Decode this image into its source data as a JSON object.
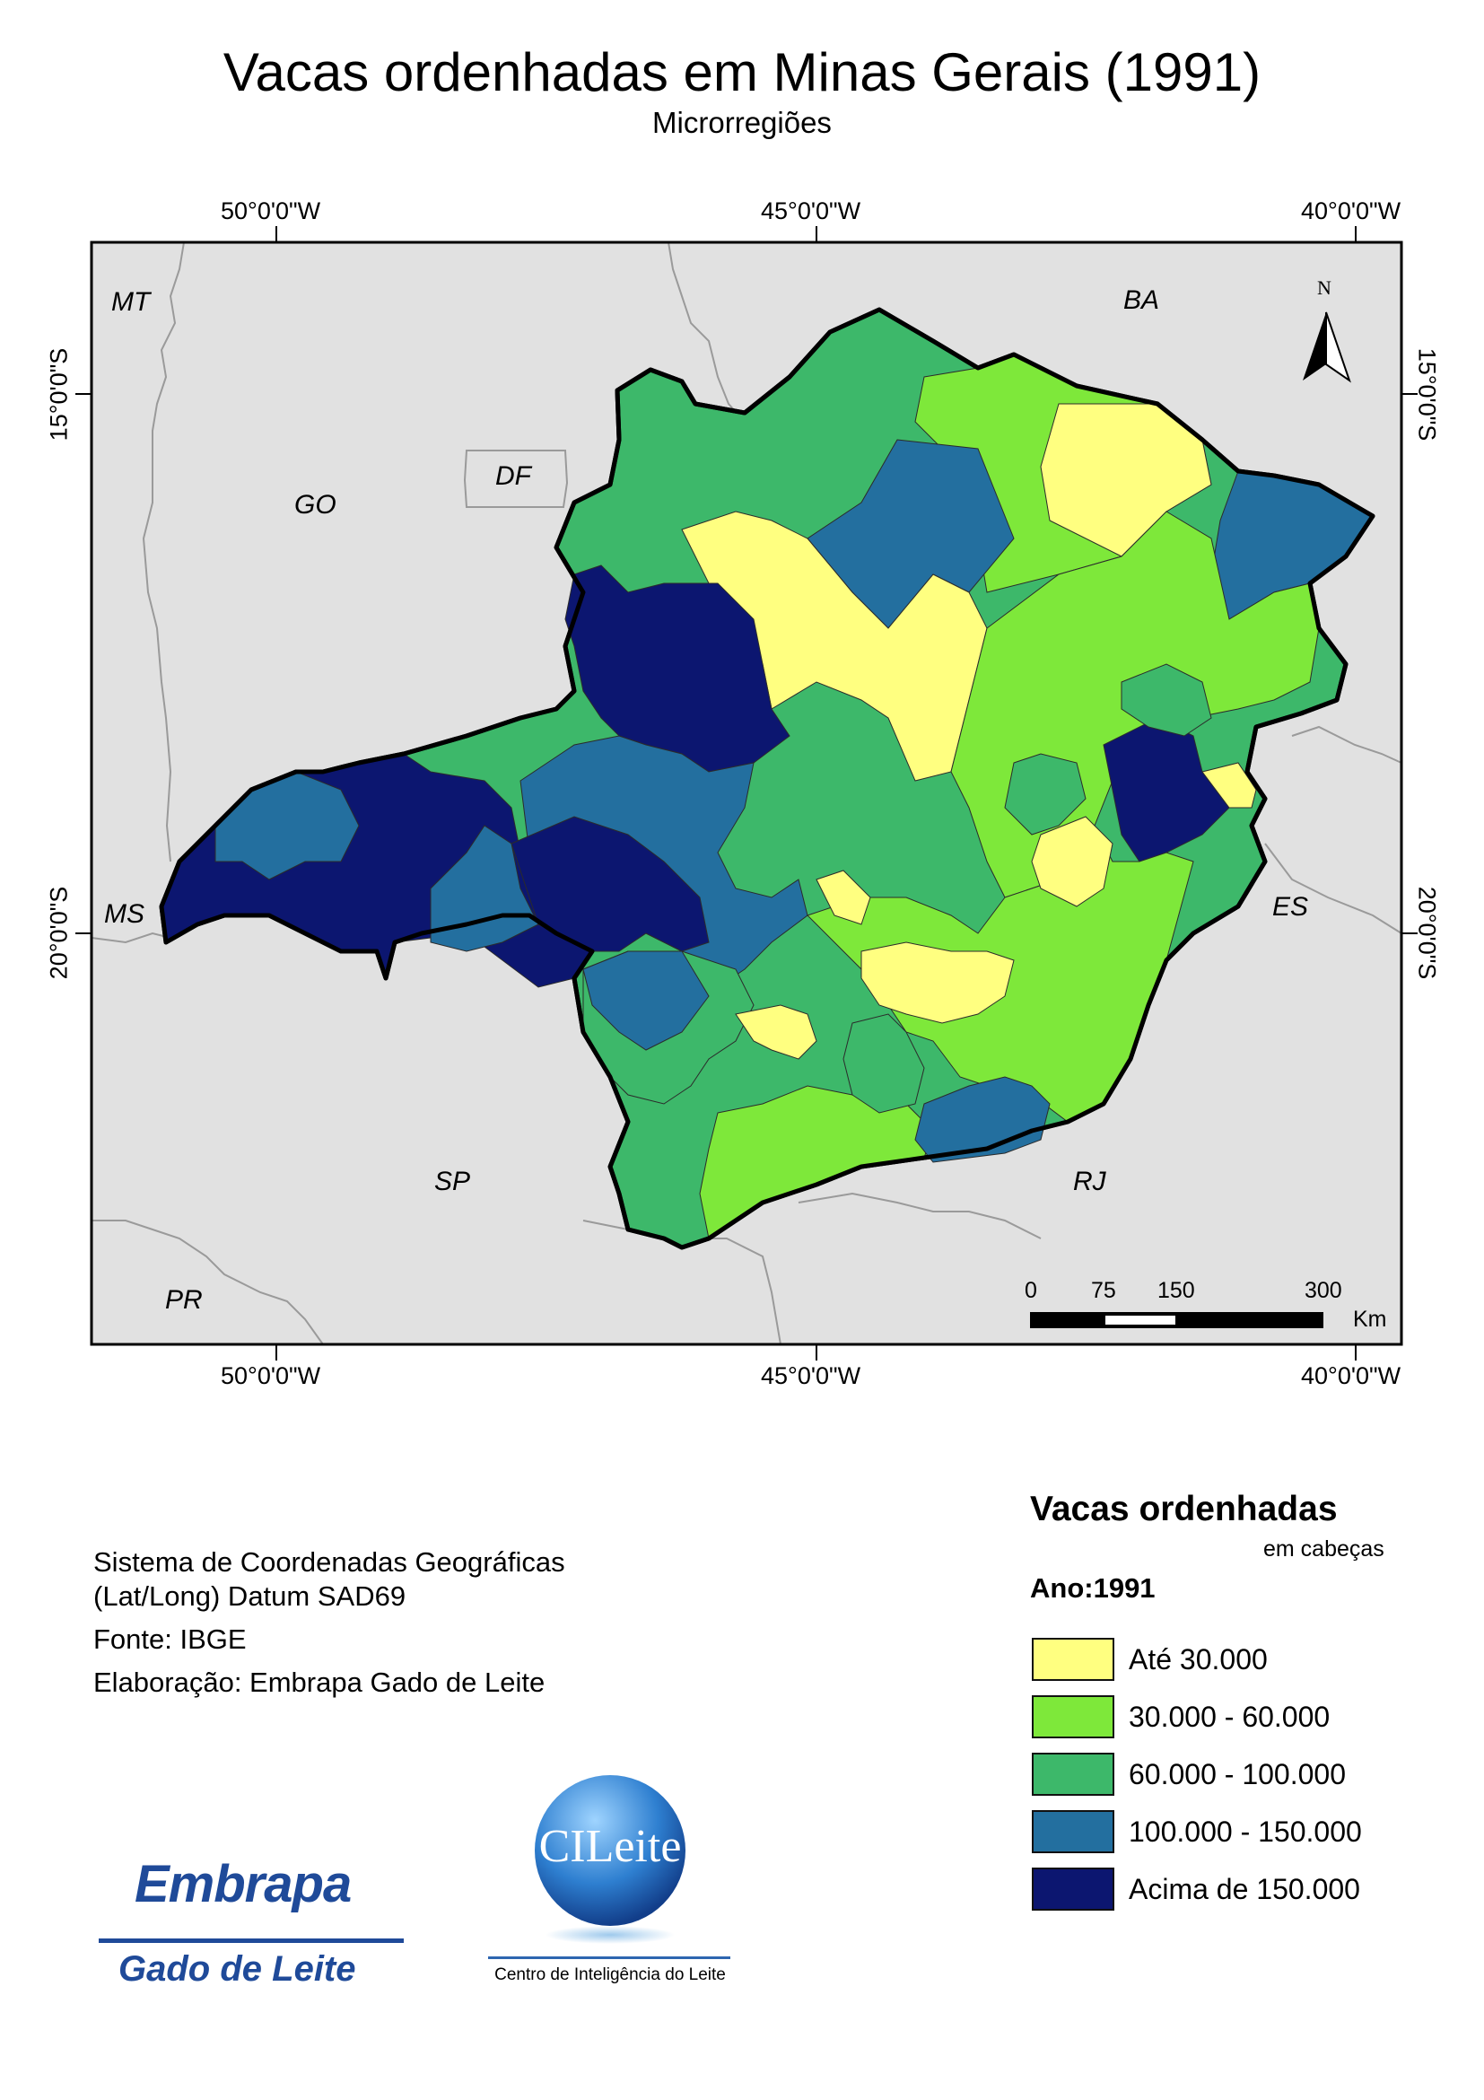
{
  "header": {
    "title": "Vacas ordenhadas em Minas Gerais (1991)",
    "subtitle": "Microrregiões"
  },
  "map": {
    "coords": {
      "lon": [
        "50°0'0\"W",
        "45°0'0\"W",
        "40°0'0\"W"
      ],
      "lat": [
        "15°0'0\"S",
        "20°0'0\"S"
      ]
    },
    "states": [
      "MT",
      "BA",
      "GO",
      "DF",
      "MS",
      "ES",
      "SP",
      "RJ",
      "PR"
    ],
    "north_label": "N",
    "scale": {
      "ticks": [
        "0",
        "75",
        "150",
        "300"
      ],
      "unit": "Km"
    },
    "background_color": "#e1e1e1"
  },
  "info": {
    "coord_system_line1": "Sistema de Coordenadas Geográficas",
    "coord_system_line2": "(Lat/Long) Datum SAD69",
    "source": "Fonte: IBGE",
    "authorship": "Elaboração: Embrapa Gado de Leite"
  },
  "legend": {
    "title": "Vacas ordenhadas",
    "subtitle": "em cabeças",
    "year": "Ano:1991",
    "classes": [
      {
        "label": "Até 30.000",
        "color": "#ffff80"
      },
      {
        "label": "30.000 - 60.000",
        "color": "#7ee83a"
      },
      {
        "label": "60.000 - 100.000",
        "color": "#3db86a"
      },
      {
        "label": "100.000 - 150.000",
        "color": "#236f9f"
      },
      {
        "label": "Acima de 150.000",
        "color": "#0c1670"
      }
    ]
  },
  "logos": {
    "embrapa_name": "Embrapa",
    "embrapa_sub": "Gado de Leite",
    "cileite_name": "CILeite",
    "cileite_sub": "Centro de Inteligência do Leite"
  }
}
